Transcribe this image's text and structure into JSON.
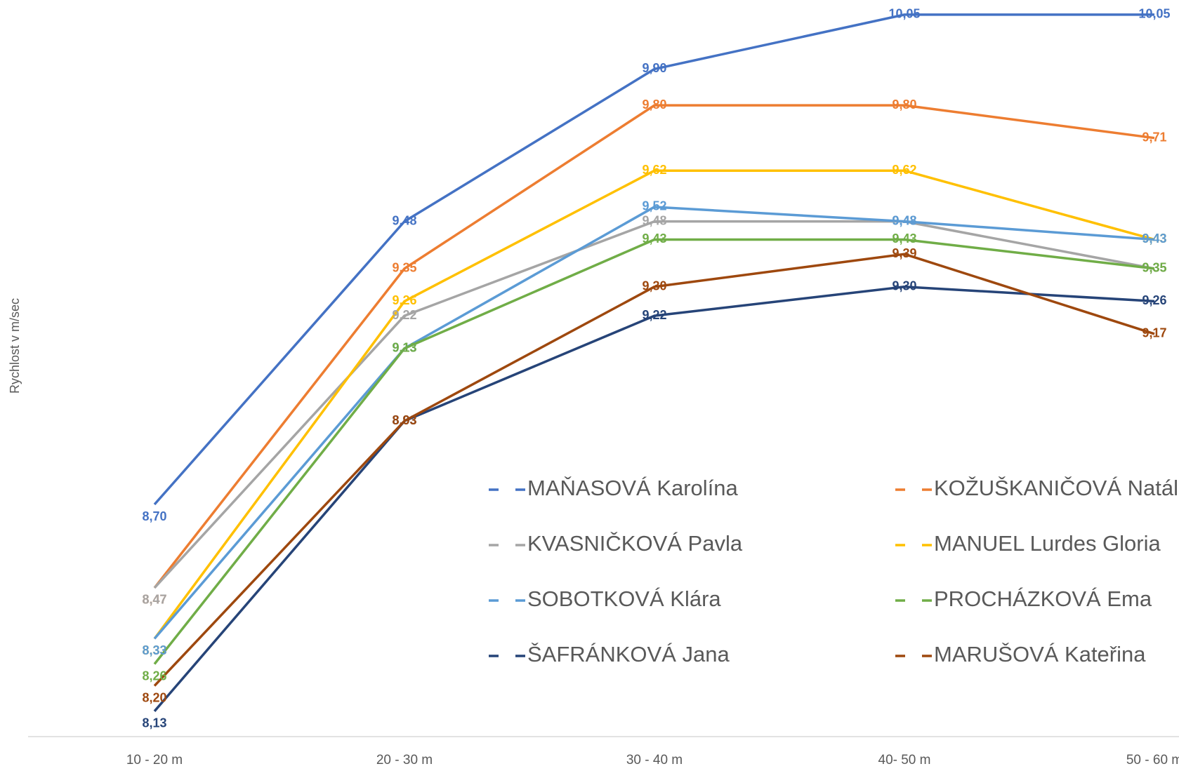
{
  "chart_data": {
    "type": "line",
    "y_axis_label": "Rychlost v m/sec",
    "categories": [
      "10 - 20 m",
      "20 - 30 m",
      "30 - 40 m",
      "40- 50 m",
      "50 - 60 m"
    ],
    "ylim": [
      8.06,
      10.1
    ],
    "grid": false,
    "legend": "bottom-right",
    "series": [
      {
        "name": "MAŇASOVÁ Karolína",
        "color": "#4472c4",
        "values": [
          8.7,
          9.48,
          9.9,
          10.05,
          10.05
        ],
        "value_labels": [
          "8,70",
          "9,48",
          "9,90",
          "10,05",
          "10,05"
        ]
      },
      {
        "name": "KOŽUŠKANIČOVÁ Natálie",
        "color": "#ed7d31",
        "values": [
          8.47,
          9.35,
          9.8,
          9.8,
          9.71
        ],
        "value_labels": [
          "8,47",
          "9,35",
          "9,80",
          "9,80",
          "9,71"
        ]
      },
      {
        "name": "KVASNIČKOVÁ Pavla",
        "color": "#a5a5a5",
        "values": [
          8.47,
          9.22,
          9.48,
          9.48,
          9.35
        ],
        "value_labels": [
          "8,47",
          "9,22",
          "9,48",
          "9,48",
          "9,35"
        ]
      },
      {
        "name": "MANUEL Lurdes Gloria",
        "color": "#ffc000",
        "values": [
          8.33,
          9.26,
          9.62,
          9.62,
          9.43
        ],
        "value_labels": [
          "8,33",
          "9,26",
          "9,62",
          "9,62",
          "9,43"
        ]
      },
      {
        "name": "SOBOTKOVÁ Klára",
        "color": "#5b9bd5",
        "values": [
          8.33,
          9.13,
          9.52,
          9.48,
          9.43
        ],
        "value_labels": [
          "8,33",
          "9,13",
          "9,52",
          "9,48",
          "9,43"
        ]
      },
      {
        "name": "PROCHÁZKOVÁ Ema",
        "color": "#70ad47",
        "values": [
          8.26,
          9.13,
          9.43,
          9.43,
          9.35
        ],
        "value_labels": [
          "8,26",
          "9,13",
          "9,43",
          "9,43",
          "9,35"
        ]
      },
      {
        "name": "ŠAFRÁNKOVÁ Jana",
        "color": "#264478",
        "values": [
          8.13,
          8.93,
          9.22,
          9.3,
          9.26
        ],
        "value_labels": [
          "8,13",
          "8,93",
          "9,22",
          "9,30",
          "9,26"
        ]
      },
      {
        "name": "MARUŠOVÁ Kateřina",
        "color": "#9e480e",
        "values": [
          8.2,
          8.93,
          9.3,
          9.39,
          9.17
        ],
        "value_labels": [
          "8,20",
          "8,93",
          "9,30",
          "9,39",
          "9,17"
        ]
      }
    ]
  }
}
